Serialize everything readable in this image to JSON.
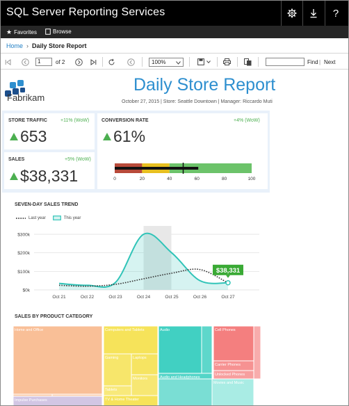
{
  "app": {
    "title": "SQL Server Reporting Services"
  },
  "icons": {
    "settings": "gear-icon",
    "download": "download-icon",
    "help": "help-icon"
  },
  "favbar": {
    "favorites": "Favorites",
    "browse": "Browse"
  },
  "breadcrumb": {
    "home": "Home",
    "separator": "›",
    "current": "Daily Store Report"
  },
  "toolbar": {
    "page_value": "1",
    "of_label": "of",
    "total_pages": "2",
    "zoom_value": "100%",
    "find_label": "Find",
    "find_sep": "|",
    "next_label": "Next"
  },
  "report": {
    "company": "Fabrikam",
    "title": "Daily Store Report",
    "subline": "October 27, 2015  |  Store: Seattle Downtown  |  Manager: Riccardo Muti",
    "kpis": {
      "store_traffic": {
        "label": "STORE TRAFFIC",
        "wow": "+11% (WoW)",
        "value": "653"
      },
      "sales": {
        "label": "SALES",
        "wow": "+5% (WoW)",
        "value": "$38,331"
      },
      "conversion": {
        "label": "CONVERSION RATE",
        "wow": "+4% (WoW)",
        "value": "61%"
      }
    },
    "trend_title": "SEVEN-DAY SALES TREND",
    "category_title": "SALES BY PRODUCT CATEGORY"
  },
  "colors": {
    "accent": "#2e8fcf",
    "positive": "#4caf50",
    "teal": "#30c4b8",
    "dark": "#000000"
  },
  "chart_data": [
    {
      "type": "bullet",
      "bands": [
        {
          "from": 0,
          "to": 20,
          "color": "#b84a3a"
        },
        {
          "from": 20,
          "to": 40,
          "color": "#e8c020"
        },
        {
          "from": 40,
          "to": 100,
          "color": "#6cc36a"
        }
      ],
      "value": 61,
      "target": 50,
      "ticks": [
        "0",
        "20",
        "40",
        "60",
        "80",
        "100"
      ],
      "xlim": [
        0,
        100
      ]
    },
    {
      "type": "line",
      "categories": [
        "Oct 21",
        "Oct 22",
        "Oct 23",
        "Oct 24",
        "Oct 25",
        "Oct 26",
        "Oct 27"
      ],
      "y_ticks": [
        "$0k",
        "$100k",
        "$200k",
        "$300k"
      ],
      "ylim": [
        0,
        300000
      ],
      "series": [
        {
          "name": "Last year",
          "style": "dotted",
          "values": [
            25000,
            20000,
            30000,
            60000,
            90000,
            110000,
            38000
          ]
        },
        {
          "name": "This year",
          "style": "area",
          "values": [
            35000,
            25000,
            40000,
            300000,
            200000,
            50000,
            38331
          ]
        }
      ],
      "highlight_category": "Oct 24",
      "end_label": "$38,331"
    },
    {
      "type": "treemap",
      "categories": [
        {
          "name": "Home and Office",
          "color": "#f9bf97"
        },
        {
          "name": "Computers and Tablets",
          "color": "#f6e35a"
        },
        {
          "name": "Audio",
          "color": "#41d0c2"
        },
        {
          "name": "Cell Phones",
          "color": "#f47f7f"
        },
        {
          "name": "Gaming",
          "color": "#f6e35a"
        },
        {
          "name": "Laptops",
          "color": "#f6e35a"
        },
        {
          "name": "Monitors",
          "color": "#f6e35a"
        },
        {
          "name": "Tablets",
          "color": "#f6e35a"
        },
        {
          "name": "Audio and Headphones",
          "color": "#41d0c2"
        },
        {
          "name": "Carrier Phones",
          "color": "#f47f7f"
        },
        {
          "name": "Unlocked Phones",
          "color": "#f47f7f"
        },
        {
          "name": "Kitchen and Dining",
          "color": "#f9bf97"
        },
        {
          "name": "Impulse Purchases",
          "color": "#d2c6e4"
        },
        {
          "name": "TV & Home Theater",
          "color": "#f6e35a"
        },
        {
          "name": "Movies and Music",
          "color": "#a9ece4"
        }
      ]
    }
  ]
}
